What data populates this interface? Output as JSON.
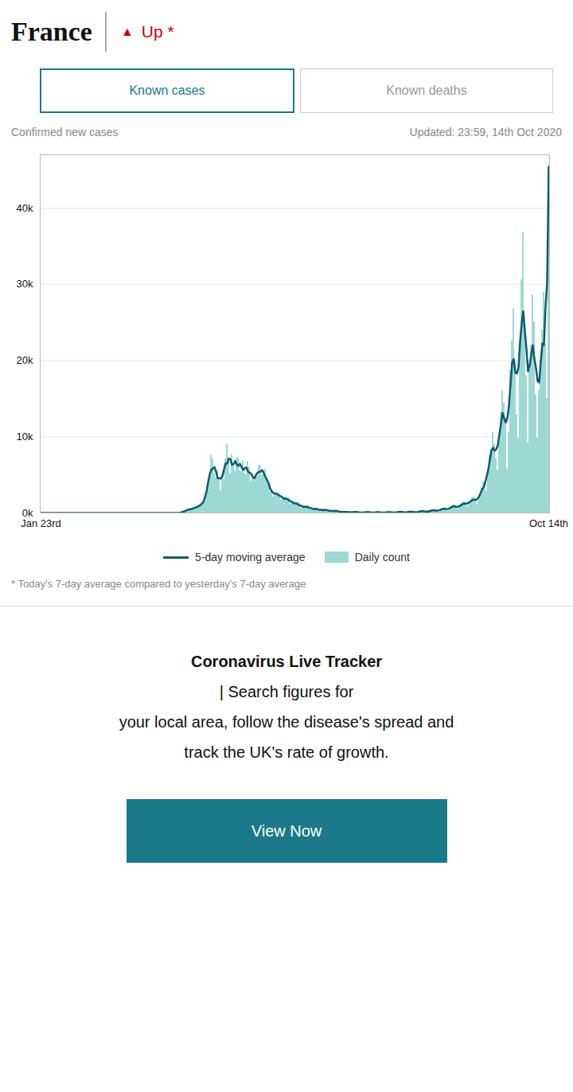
{
  "chart_data": {
    "type": "bar",
    "title": "France",
    "subtitle": "Confirmed new cases",
    "annotations": [
      {
        "text": "▲",
        "color": "#cc0000"
      },
      {
        "text": "Up *",
        "color": "#cc0000"
      },
      {
        "text": "Known cases",
        "color": "#1a7a8a"
      },
      {
        "text": "Known deaths"
      },
      {
        "text": "Updated: 23:59, 14th Oct 2020"
      },
      {
        "text": "* Today's 7-day average compared to yesterday's 7-day average"
      },
      {
        "text": "Coronavirus Live Tracker"
      },
      {
        "text": "| Search figures for"
      },
      {
        "text": "your local area, follow the disease's spread and"
      },
      {
        "text": "track the UK's rate of growth."
      },
      {
        "text": "View Now",
        "color": "#1a7a8a"
      }
    ],
    "categories": [
      "Jan 23rd",
      null,
      null,
      null,
      null,
      null,
      null,
      null,
      null,
      null,
      null,
      null,
      null,
      null,
      null,
      null,
      null,
      null,
      null,
      null,
      null,
      null,
      null,
      null,
      null,
      null,
      null,
      null,
      null,
      null,
      null,
      null,
      null,
      null,
      null,
      null,
      null,
      null,
      null,
      null,
      null,
      null,
      null,
      null,
      null,
      null,
      null,
      null,
      null,
      null,
      null,
      null,
      null,
      null,
      null,
      null,
      null,
      null,
      null,
      null,
      null,
      null,
      null,
      null,
      null,
      null,
      null,
      null,
      null,
      null,
      null,
      null,
      null,
      null,
      null,
      null,
      null,
      null,
      null,
      null,
      null,
      null,
      null,
      null,
      null,
      null,
      null,
      null,
      null,
      null,
      null,
      null,
      null,
      null,
      null,
      null,
      null,
      null,
      null,
      null,
      null,
      null,
      null,
      null,
      null,
      null,
      null,
      null,
      null,
      null,
      null,
      null,
      null,
      null,
      null,
      null,
      null,
      null,
      null,
      null,
      null,
      null,
      null,
      null,
      null,
      null,
      null,
      null,
      null,
      null,
      null,
      null,
      null,
      null,
      null,
      null,
      null,
      null,
      null,
      null,
      null,
      null,
      null,
      null,
      null,
      null,
      null,
      null,
      null,
      null,
      null,
      null,
      null,
      null,
      null,
      null,
      null,
      null,
      null,
      null,
      null,
      null,
      null,
      null,
      null,
      null,
      null,
      null,
      null,
      null,
      null,
      null,
      null,
      null,
      null,
      null,
      null,
      null,
      null,
      null,
      null,
      null,
      null,
      null,
      null,
      null,
      null,
      null,
      null,
      null,
      null,
      null,
      null,
      null,
      null,
      null,
      null,
      null,
      null,
      null,
      null,
      null,
      null,
      null,
      null,
      null,
      null,
      null,
      null,
      null,
      null,
      null,
      null,
      null,
      null,
      null,
      null,
      null,
      null,
      null,
      null,
      null,
      null,
      null,
      null,
      null,
      null,
      null,
      null,
      null,
      null,
      null,
      null,
      null,
      null,
      null,
      null,
      null,
      null,
      null,
      null,
      null,
      null,
      null,
      null,
      null,
      null,
      null,
      null,
      null,
      null,
      null,
      null,
      null,
      null,
      null,
      null,
      null,
      null,
      null,
      null,
      null,
      null,
      null,
      null,
      null,
      null,
      null,
      null,
      null,
      null,
      null,
      null,
      null,
      null,
      null,
      null,
      null,
      null,
      null,
      null,
      null,
      null,
      null,
      null,
      null,
      null,
      null,
      null,
      null,
      null,
      null,
      null,
      null,
      null,
      null,
      null,
      null,
      null,
      null,
      null,
      null,
      null,
      null,
      null,
      null,
      null,
      null,
      null,
      null,
      null,
      null,
      null,
      null,
      null,
      null,
      null,
      null,
      null,
      "Oct 14th"
    ],
    "series": [
      {
        "name": "5-day moving average",
        "type": "line",
        "color": "#0d5c6e",
        "values": [
          0,
          0,
          0,
          0,
          0,
          0,
          0,
          0,
          0,
          0,
          0,
          0,
          0,
          0,
          0,
          0,
          0,
          0,
          0,
          0,
          0,
          0,
          0,
          0,
          0,
          0,
          0,
          0,
          0,
          0,
          0,
          0,
          0,
          0,
          0,
          0,
          0.4,
          0.4,
          0.4,
          0.4,
          0.4,
          0,
          0,
          0,
          0.4,
          0.4,
          0.4,
          0.4,
          0.4,
          0,
          0,
          0,
          0,
          0.2,
          0.2,
          0.2,
          0.2,
          0.2,
          0,
          0,
          0,
          0,
          0,
          0,
          0,
          0,
          0,
          0,
          0,
          0,
          0,
          0,
          0,
          0,
          0.4,
          0.4,
          0.4,
          0.4,
          0.4,
          0,
          3.6,
          3.6,
          3.6,
          3.6,
          6.6,
          3,
          3,
          30.6,
          68.6,
          132.8,
          207.2,
          307,
          397.6,
          461.4,
          476.6,
          543.6,
          626.2,
          710.4,
          775.8,
          881.8,
          1011.4,
          1195.8,
          1450.2,
          2042,
          2780.6,
          4025.2,
          5076.8,
          5666.6,
          5829.8,
          6025.4,
          5403.2,
          4575.8,
          4565.2,
          4518.6,
          4816,
          5723.8,
          6496.2,
          6494.4,
          7153,
          7037.8,
          6334.4,
          6392.2,
          6806,
          6384.2,
          6158.6,
          6438.6,
          6063.2,
          5629,
          5861.8,
          5981.4,
          5434.4,
          5300.6,
          5140.6,
          4772.2,
          4531.2,
          4950,
          5271.2,
          5406.6,
          5434.6,
          5629.8,
          5223.2,
          4747.6,
          4322.2,
          3913,
          3188.6,
          2861.4,
          2613,
          2593.4,
          2487.6,
          2398,
          2255.8,
          2150,
          1977.2,
          1858.2,
          1911.4,
          1767.8,
          1622.2,
          1519.8,
          1401.8,
          1244,
          1296.2,
          1187.6,
          1047.6,
          968.6,
          907.8,
          787.8,
          832,
          814.6,
          727.6,
          665,
          622.4,
          529.4,
          547.2,
          519.8,
          455.2,
          419.8,
          423.6,
          373.4,
          399.6,
          397,
          349.8,
          288.8,
          275,
          258.8,
          271.4,
          279.4,
          251.8,
          200.2,
          156.4,
          130.4,
          121.8,
          133,
          130.6,
          113,
          103.8,
          100.2,
          112.4,
          127.2,
          133.4,
          114.8,
          88.2,
          62,
          55.2,
          72,
          99.6,
          106,
          93.2,
          78,
          60.6,
          55.4,
          71.4,
          94.6,
          98.4,
          84.8,
          63.8,
          50.6,
          53.4,
          74.6,
          96.6,
          100.8,
          85.4,
          66.4,
          60.4,
          76,
          113.4,
          141.8,
          146.2,
          126.2,
          103.2,
          90.8,
          106,
          145.4,
          163,
          158,
          124.8,
          103.6,
          103.8,
          135.2,
          197.2,
          236,
          241.6,
          206.6,
          194.2,
          191.6,
          243.2,
          294.2,
          348.2,
          342.2,
          309.4,
          309.6,
          355.2,
          407.4,
          515.8,
          559.4,
          523.4,
          506.6,
          559.8,
          639,
          768,
          873.8,
          865.2,
          814.8,
          819.4,
          889,
          1027,
          1193.6,
          1235.6,
          1233.6,
          1282.2,
          1383.8,
          1534.4,
          1731.8,
          1727.6,
          1716.4,
          1796.4,
          2042,
          2497.4,
          3075.6,
          3328.6,
          3939.2,
          4792.8,
          5655.2,
          6969.4,
          8200.6,
          8546.6,
          8153.6,
          8352.6,
          8883.4,
          10302.6,
          11748.4,
          13136.6,
          12408.4,
          11879.2,
          12409.2,
          14045,
          16891.8,
          19738.8,
          20208,
          18415.6,
          18318.2,
          19084.8,
          22448.2,
          24844.4,
          26487.6,
          23916.8,
          21541.8,
          18578.4,
          19327.2,
          20744.4,
          22006.6,
          20226.4,
          19045.6,
          17336.8,
          17119.6,
          19807.4,
          22238.4,
          22019.2,
          27084.4,
          30211,
          45422
        ]
      },
      {
        "name": "Daily count",
        "type": "bar",
        "color": "#9dd9d2",
        "values": [
          0,
          0,
          0,
          0,
          0,
          0,
          0,
          0,
          0,
          0,
          0,
          0,
          0,
          0,
          0,
          0,
          0,
          0,
          0,
          0,
          0,
          0,
          0,
          0,
          0,
          0,
          0,
          0,
          0,
          0,
          0,
          0,
          0,
          0,
          0,
          0,
          0,
          0,
          2,
          0,
          0,
          0,
          0,
          0,
          0,
          0,
          2,
          0,
          0,
          0,
          0,
          0,
          0,
          0,
          0,
          1,
          0,
          0,
          0,
          0,
          0,
          0,
          0,
          0,
          0,
          0,
          0,
          0,
          0,
          0,
          0,
          0,
          0,
          0,
          0,
          0,
          2,
          0,
          0,
          0,
          0,
          0,
          18,
          0,
          0,
          0,
          15,
          0,
          0,
          138,
          190,
          336,
          372,
          499,
          591,
          509,
          412,
          707,
          912,
          1012,
          836,
          942,
          1355,
          1834,
          2284,
          3795,
          4635,
          7578,
          7092,
          5233,
          4611,
          5613,
          4467,
          2955,
          5180,
          4378,
          7100,
          9006,
          6817,
          5171,
          7671,
          6524,
          5489,
          7106,
          7240,
          5562,
          5396,
          6889,
          5229,
          5069,
          6726,
          5994,
          4154,
          4560,
          4269,
          4884,
          4789,
          6248,
          6166,
          4946,
          5024,
          5765,
          4215,
          3788,
          2819,
          2978,
          2143,
          2579,
          2546,
          2721,
          2449,
          1695,
          1868,
          2017,
          1857,
          1854,
          1961,
          1150,
          1289,
          1345,
          1264,
          1172,
          1411,
          746,
          645,
          869,
          868,
          811,
          967,
          558,
          434,
          555,
          598,
          502,
          647,
          297,
          232,
          421,
          521,
          396,
          428,
          219,
          185,
          216,
          327,
          347,
          282,
          225,
          78,
          69,
          128,
          152,
          182,
          134,
          57,
          40,
          106,
          164,
          195,
          131,
          71,
          13,
          31,
          64,
          97,
          155,
          151,
          63,
          0,
          21,
          68,
          125,
          143,
          116,
          40,
          0,
          20,
          77,
          130,
          146,
          110,
          41,
          0,
          35,
          116,
          188,
          228,
          142,
          57,
          16,
          73,
          166,
          218,
          254,
          104,
          48,
          0,
          112,
          255,
          261,
          358,
          194,
          140,
          80,
          199,
          345,
          452,
          395,
          350,
          169,
          181,
          453,
          623,
          611,
          711,
          399,
          273,
          539,
          877,
          1107,
          1044,
          802,
          496,
          625,
          1130,
          1392,
          1492,
          1329,
          835,
          1120,
          1635,
          2000,
          2082,
          1822,
          1099,
          1579,
          2400,
          3310,
          4099,
          3990,
          2844,
          5453,
          7578,
          8411,
          10561,
          9000,
          7183,
          5613,
          9406,
          13215,
          16096,
          14412,
          12554,
          5765,
          10569,
          18746,
          22591,
          26788,
          20000,
          12915,
          9784,
          22104,
          30621,
          36817,
          24896,
          18000,
          9250,
          18746,
          22000,
          28640,
          25086,
          15561,
          9845,
          16096,
          20096,
          24000,
          29000,
          22000,
          15000,
          45422
        ]
      }
    ],
    "ylim": [
      0,
      47000
    ],
    "yticks": [
      {
        "value": 0,
        "label": "0k"
      },
      {
        "value": 10000,
        "label": "10k"
      },
      {
        "value": 20000,
        "label": "20k"
      },
      {
        "value": 30000,
        "label": "30k"
      },
      {
        "value": 40000,
        "label": "40k"
      }
    ],
    "grid": true,
    "legend": "bottom"
  }
}
